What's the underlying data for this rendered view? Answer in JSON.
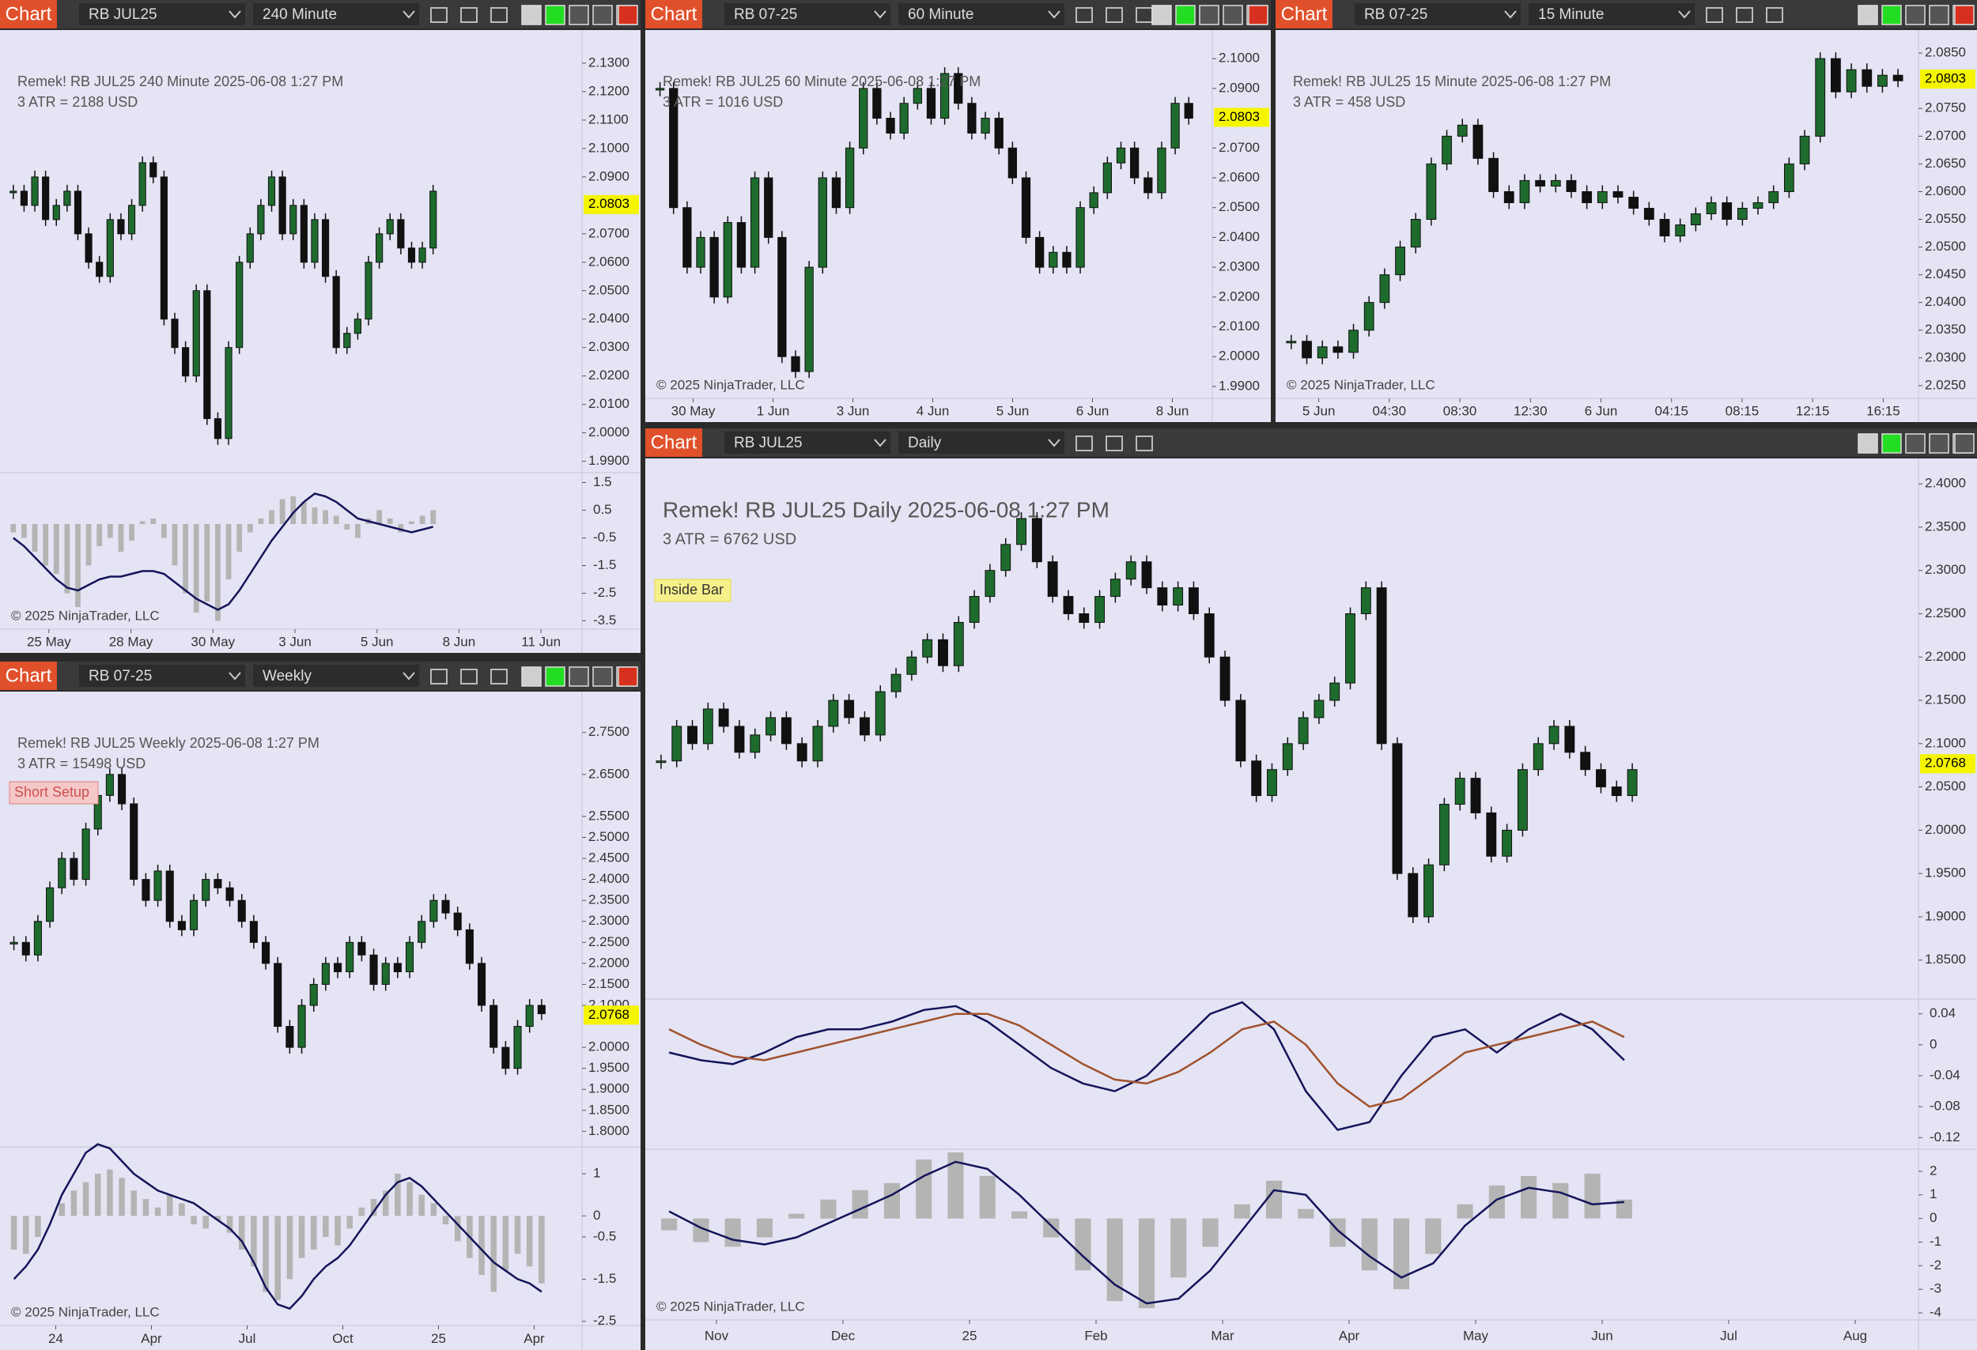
{
  "panels": [
    {
      "tab": "Chart",
      "instrument": "RB JUL25",
      "interval": "240 Minute",
      "title": "Remek!  RB JUL25  240 Minute  2025-06-08 1:27 PM",
      "atr": "3 ATR = 2188 USD",
      "copyright": "© 2025 NinjaTrader, LLC",
      "last": 2.0803,
      "up_color": "#1e6b2e",
      "down_color": "#111111",
      "price_ylim": [
        1.986,
        2.14
      ],
      "price_ticks": [
        {
          "value": 2.13,
          "label": "2.1300"
        },
        {
          "value": 2.12,
          "label": "2.1200"
        },
        {
          "value": 2.11,
          "label": "2.1100"
        },
        {
          "value": 2.1,
          "label": "2.1000"
        },
        {
          "value": 2.09,
          "label": "2.0900"
        },
        {
          "value": 2.07,
          "label": "2.0700"
        },
        {
          "value": 2.06,
          "label": "2.0600"
        },
        {
          "value": 2.05,
          "label": "2.0500"
        },
        {
          "value": 2.04,
          "label": "2.0400"
        },
        {
          "value": 2.03,
          "label": "2.0300"
        },
        {
          "value": 2.02,
          "label": "2.0200"
        },
        {
          "value": 2.01,
          "label": "2.0100"
        },
        {
          "value": 2.0,
          "label": "2.0000"
        },
        {
          "value": 1.99,
          "label": "1.9900"
        }
      ],
      "time_labels": [
        "25 May",
        "28 May",
        "30 May",
        "3 Jun",
        "5 Jun",
        "8 Jun",
        "11 Jun"
      ],
      "closes": [
        2.085,
        2.08,
        2.09,
        2.075,
        2.08,
        2.085,
        2.07,
        2.06,
        2.055,
        2.075,
        2.07,
        2.08,
        2.095,
        2.09,
        2.04,
        2.03,
        2.02,
        2.05,
        2.005,
        1.998,
        2.03,
        2.06,
        2.07,
        2.08,
        2.09,
        2.07,
        2.08,
        2.06,
        2.075,
        2.055,
        2.03,
        2.035,
        2.04,
        2.06,
        2.07,
        2.075,
        2.065,
        2.06,
        2.065,
        2.085
      ],
      "oscillators": [
        {
          "ylim": [
            -3.8,
            1.8
          ],
          "ticks": [
            1.5,
            0.5,
            -0.5,
            -1.5,
            -2.5,
            -3.5
          ],
          "bars": {
            "color": "#b4b4b4",
            "values": [
              -0.3,
              -0.5,
              -1,
              -1.5,
              -1.8,
              -2.5,
              -3,
              -1.5,
              -0.8,
              -0.5,
              -1,
              -0.6,
              0.1,
              0.2,
              -0.5,
              -1.5,
              -2.5,
              -3.2,
              -2.8,
              -3.5,
              -2,
              -1,
              -0.3,
              0.2,
              0.5,
              0.9,
              1,
              0.8,
              0.6,
              0.5,
              0.3,
              -0.2,
              -0.5,
              0.2,
              0.5,
              0.2,
              -0.3,
              0.1,
              0.3,
              0.5
            ]
          },
          "lines": [
            {
              "color": "#14145a",
              "values": [
                -0.5,
                -0.8,
                -1.2,
                -1.6,
                -2,
                -2.3,
                -2.4,
                -2.2,
                -2.0,
                -1.9,
                -1.9,
                -1.8,
                -1.7,
                -1.7,
                -1.8,
                -2.1,
                -2.4,
                -2.7,
                -2.9,
                -3.1,
                -2.9,
                -2.4,
                -1.8,
                -1.2,
                -0.6,
                -0.1,
                0.4,
                0.8,
                1.1,
                1.0,
                0.8,
                0.5,
                0.2,
                0.1,
                0.0,
                -0.1,
                -0.2,
                -0.3,
                -0.2,
                -0.1
              ]
            }
          ]
        }
      ]
    },
    {
      "tab": "Chart",
      "instrument": "RB 07-25",
      "interval": "60 Minute",
      "title": "Remek!  RB JUL25  60 Minute  2025-06-08 1:27 PM",
      "atr": "3 ATR = 1016 USD",
      "copyright": "© 2025 NinjaTrader, LLC",
      "last": 2.0803,
      "up_color": "#1e6b2e",
      "down_color": "#111111",
      "price_ylim": [
        1.986,
        2.108
      ],
      "price_ticks": [
        {
          "value": 2.1,
          "label": "2.1000"
        },
        {
          "value": 2.09,
          "label": "2.0900"
        },
        {
          "value": 2.07,
          "label": "2.0700"
        },
        {
          "value": 2.06,
          "label": "2.0600"
        },
        {
          "value": 2.05,
          "label": "2.0500"
        },
        {
          "value": 2.04,
          "label": "2.0400"
        },
        {
          "value": 2.03,
          "label": "2.0300"
        },
        {
          "value": 2.02,
          "label": "2.0200"
        },
        {
          "value": 2.01,
          "label": "2.0100"
        },
        {
          "value": 2.0,
          "label": "2.0000"
        },
        {
          "value": 1.99,
          "label": "1.9900"
        }
      ],
      "time_labels": [
        "30 May",
        "1 Jun",
        "3 Jun",
        "4 Jun",
        "5 Jun",
        "6 Jun",
        "8 Jun"
      ],
      "closes": [
        2.09,
        2.05,
        2.03,
        2.04,
        2.02,
        2.045,
        2.03,
        2.06,
        2.04,
        2.0,
        1.995,
        2.03,
        2.06,
        2.05,
        2.07,
        2.09,
        2.08,
        2.075,
        2.085,
        2.09,
        2.08,
        2.095,
        2.085,
        2.075,
        2.08,
        2.07,
        2.06,
        2.04,
        2.03,
        2.035,
        2.03,
        2.05,
        2.055,
        2.065,
        2.07,
        2.06,
        2.055,
        2.07,
        2.085,
        2.08
      ],
      "oscillators": []
    },
    {
      "tab": "Chart",
      "instrument": "RB 07-25",
      "interval": "15 Minute",
      "title": "Remek!  RB JUL25  15 Minute  2025-06-08 1:27 PM",
      "atr": "3 ATR = 458 USD",
      "copyright": "© 2025 NinjaTrader, LLC",
      "last": 2.0803,
      "up_color": "#1e6b2e",
      "down_color": "#111111",
      "price_ylim": [
        2.0227,
        2.0883
      ],
      "price_ticks": [
        {
          "value": 2.085,
          "label": "2.0850"
        },
        {
          "value": 2.075,
          "label": "2.0750"
        },
        {
          "value": 2.07,
          "label": "2.0700"
        },
        {
          "value": 2.065,
          "label": "2.0650"
        },
        {
          "value": 2.06,
          "label": "2.0600"
        },
        {
          "value": 2.055,
          "label": "2.0550"
        },
        {
          "value": 2.05,
          "label": "2.0500"
        },
        {
          "value": 2.045,
          "label": "2.0450"
        },
        {
          "value": 2.04,
          "label": "2.0400"
        },
        {
          "value": 2.035,
          "label": "2.0350"
        },
        {
          "value": 2.03,
          "label": "2.0300"
        },
        {
          "value": 2.025,
          "label": "2.0250"
        }
      ],
      "time_labels": [
        "5 Jun",
        "04:30",
        "08:30",
        "12:30",
        "6 Jun",
        "04:15",
        "08:15",
        "12:15",
        "16:15"
      ],
      "closes": [
        2.033,
        2.03,
        2.032,
        2.031,
        2.035,
        2.04,
        2.045,
        2.05,
        2.055,
        2.065,
        2.07,
        2.072,
        2.066,
        2.06,
        2.058,
        2.062,
        2.061,
        2.062,
        2.06,
        2.058,
        2.06,
        2.059,
        2.057,
        2.055,
        2.052,
        2.054,
        2.056,
        2.058,
        2.055,
        2.057,
        2.058,
        2.06,
        2.065,
        2.07,
        2.084,
        2.078,
        2.082,
        2.079,
        2.081,
        2.08
      ],
      "oscillators": []
    },
    {
      "tab": "Chart",
      "instrument": "RB 07-25",
      "interval": "Weekly",
      "title": "Remek!  RB JUL25  Weekly  2025-06-08 1:27 PM",
      "atr": "3 ATR = 15498 USD",
      "note": "Short Setup",
      "copyright": "© 2025 NinjaTrader, LLC",
      "last": 2.0768,
      "up_color": "#1e6b2e",
      "down_color": "#111111",
      "price_ylim": [
        1.763,
        2.836
      ],
      "price_ticks": [
        {
          "value": 2.75,
          "label": "2.7500"
        },
        {
          "value": 2.65,
          "label": "2.6500"
        },
        {
          "value": 2.55,
          "label": "2.5500"
        },
        {
          "value": 2.5,
          "label": "2.5000"
        },
        {
          "value": 2.45,
          "label": "2.4500"
        },
        {
          "value": 2.4,
          "label": "2.4000"
        },
        {
          "value": 2.35,
          "label": "2.3500"
        },
        {
          "value": 2.3,
          "label": "2.3000"
        },
        {
          "value": 2.25,
          "label": "2.2500"
        },
        {
          "value": 2.2,
          "label": "2.2000"
        },
        {
          "value": 2.15,
          "label": "2.1500"
        },
        {
          "value": 2.1,
          "label": "2.1000"
        },
        {
          "value": 2.0,
          "label": "2.0000"
        },
        {
          "value": 1.95,
          "label": "1.9500"
        },
        {
          "value": 1.9,
          "label": "1.9000"
        },
        {
          "value": 1.85,
          "label": "1.8500"
        },
        {
          "value": 1.8,
          "label": "1.8000"
        }
      ],
      "time_labels": [
        "24",
        "Apr",
        "Jul",
        "Oct",
        "25",
        "Apr"
      ],
      "closes": [
        2.25,
        2.22,
        2.3,
        2.38,
        2.45,
        2.4,
        2.52,
        2.6,
        2.65,
        2.58,
        2.4,
        2.35,
        2.42,
        2.3,
        2.28,
        2.35,
        2.4,
        2.38,
        2.35,
        2.3,
        2.25,
        2.2,
        2.05,
        2.0,
        2.1,
        2.15,
        2.2,
        2.18,
        2.25,
        2.22,
        2.15,
        2.2,
        2.18,
        2.25,
        2.3,
        2.35,
        2.32,
        2.28,
        2.2,
        2.1,
        2.0,
        1.95,
        2.05,
        2.1,
        2.08
      ],
      "oscillators": [
        {
          "ylim": [
            -2.6,
            1.6
          ],
          "ticks": [
            1,
            0,
            -0.5,
            -1.5,
            -2.5
          ],
          "bars": {
            "color": "#b4b4b4",
            "values": [
              -0.8,
              -0.9,
              -0.5,
              0,
              0.3,
              0.6,
              0.8,
              1.0,
              1.1,
              0.9,
              0.6,
              0.4,
              0.2,
              0.5,
              0.3,
              -0.2,
              -0.3,
              -0.1,
              -0.4,
              -0.8,
              -1.2,
              -1.8,
              -2.0,
              -1.5,
              -1.0,
              -0.8,
              -0.5,
              -0.7,
              -0.3,
              0.2,
              0.4,
              0.6,
              1,
              0.8,
              0.5,
              0.3,
              -0.2,
              -0.6,
              -1.0,
              -1.4,
              -1.8,
              -1.3,
              -0.9,
              -1.2,
              -1.6
            ]
          },
          "lines": [
            {
              "color": "#14145a",
              "values": [
                -1.5,
                -1.2,
                -0.8,
                -0.2,
                0.5,
                1.0,
                1.5,
                1.7,
                1.6,
                1.3,
                1.0,
                0.8,
                0.6,
                0.5,
                0.4,
                0.3,
                0.1,
                -0.1,
                -0.3,
                -0.6,
                -1.1,
                -1.7,
                -2.1,
                -2.2,
                -1.9,
                -1.5,
                -1.2,
                -1.0,
                -0.7,
                -0.3,
                0.1,
                0.5,
                0.8,
                0.9,
                0.7,
                0.4,
                0.1,
                -0.2,
                -0.5,
                -0.8,
                -1.1,
                -1.3,
                -1.5,
                -1.6,
                -1.8
              ]
            }
          ]
        }
      ]
    },
    {
      "tab": "Chart",
      "instrument": "RB JUL25",
      "interval": "Daily",
      "title": "Remek!  RB JUL25  Daily  2025-06-08 1:27 PM",
      "atr": "3 ATR = 6762 USD",
      "note": "Inside Bar",
      "copyright": "© 2025 NinjaTrader, LLC",
      "last": 2.0768,
      "up_color": "#1e6b2e",
      "down_color": "#111111",
      "price_ylim": [
        1.805,
        2.4175
      ],
      "price_ticks": [
        {
          "value": 2.4,
          "label": "2.4000"
        },
        {
          "value": 2.35,
          "label": "2.3500"
        },
        {
          "value": 2.3,
          "label": "2.3000"
        },
        {
          "value": 2.25,
          "label": "2.2500"
        },
        {
          "value": 2.2,
          "label": "2.2000"
        },
        {
          "value": 2.15,
          "label": "2.1500"
        },
        {
          "value": 2.1,
          "label": "2.1000"
        },
        {
          "value": 2.05,
          "label": "2.0500"
        },
        {
          "value": 2.0,
          "label": "2.0000"
        },
        {
          "value": 1.95,
          "label": "1.9500"
        },
        {
          "value": 1.9,
          "label": "1.9000"
        },
        {
          "value": 1.85,
          "label": "1.8500"
        }
      ],
      "time_labels": [
        "Nov",
        "Dec",
        "25",
        "Feb",
        "Mar",
        "Apr",
        "May",
        "Jun",
        "Jul",
        "Aug"
      ],
      "closes": [
        2.08,
        2.12,
        2.1,
        2.14,
        2.12,
        2.09,
        2.11,
        2.13,
        2.1,
        2.08,
        2.12,
        2.15,
        2.13,
        2.11,
        2.16,
        2.18,
        2.2,
        2.22,
        2.19,
        2.24,
        2.27,
        2.3,
        2.33,
        2.36,
        2.31,
        2.27,
        2.25,
        2.24,
        2.27,
        2.29,
        2.31,
        2.28,
        2.26,
        2.28,
        2.25,
        2.2,
        2.15,
        2.08,
        2.04,
        2.07,
        2.1,
        2.13,
        2.15,
        2.17,
        2.25,
        2.28,
        2.1,
        1.95,
        1.9,
        1.96,
        2.03,
        2.06,
        2.02,
        1.97,
        2.0,
        2.07,
        2.1,
        2.12,
        2.09,
        2.07,
        2.05,
        2.04,
        2.07
      ],
      "oscillators": [
        {
          "ylim": [
            -0.135,
            0.055
          ],
          "ticks": [
            0.04,
            0,
            -0.04,
            -0.08,
            -0.12
          ],
          "lines": [
            {
              "color": "#14145a",
              "values": [
                -0.01,
                -0.02,
                -0.025,
                -0.01,
                0.01,
                0.02,
                0.02,
                0.03,
                0.045,
                0.05,
                0.03,
                0.0,
                -0.03,
                -0.05,
                -0.06,
                -0.04,
                0.0,
                0.04,
                0.055,
                0.02,
                -0.06,
                -0.11,
                -0.1,
                -0.04,
                0.01,
                0.02,
                -0.01,
                0.02,
                0.04,
                0.02,
                -0.02
              ]
            },
            {
              "color": "#a0522d",
              "values": [
                0.02,
                0.0,
                -0.015,
                -0.02,
                -0.01,
                0.0,
                0.01,
                0.02,
                0.03,
                0.04,
                0.04,
                0.025,
                0.0,
                -0.025,
                -0.045,
                -0.05,
                -0.035,
                -0.01,
                0.02,
                0.03,
                0.0,
                -0.05,
                -0.08,
                -0.07,
                -0.04,
                -0.01,
                0.0,
                0.01,
                0.02,
                0.03,
                0.01
              ]
            }
          ]
        },
        {
          "ylim": [
            -4.3,
            2.8
          ],
          "ticks": [
            2,
            1,
            0,
            -1,
            -2,
            -3,
            -4
          ],
          "bars": {
            "color": "#b4b4b4",
            "values": [
              -0.5,
              -1,
              -1.2,
              -0.8,
              0.2,
              0.8,
              1.2,
              1.5,
              2.5,
              2.8,
              1.8,
              0.3,
              -0.8,
              -2.2,
              -3.5,
              -3.8,
              -2.5,
              -1.2,
              0.6,
              1.6,
              0.4,
              -1.2,
              -2.2,
              -3,
              -1.5,
              0.6,
              1.4,
              1.8,
              1.5,
              1.9,
              0.8
            ]
          },
          "lines": [
            {
              "color": "#14145a",
              "values": [
                0.3,
                -0.4,
                -0.9,
                -1.1,
                -0.8,
                -0.2,
                0.4,
                1,
                1.8,
                2.4,
                2.1,
                1.0,
                -0.3,
                -1.6,
                -2.8,
                -3.6,
                -3.4,
                -2.2,
                -0.5,
                1.2,
                1.0,
                -0.5,
                -1.6,
                -2.5,
                -1.9,
                -0.3,
                0.8,
                1.3,
                1.1,
                0.6,
                0.7
              ]
            }
          ]
        }
      ]
    }
  ]
}
